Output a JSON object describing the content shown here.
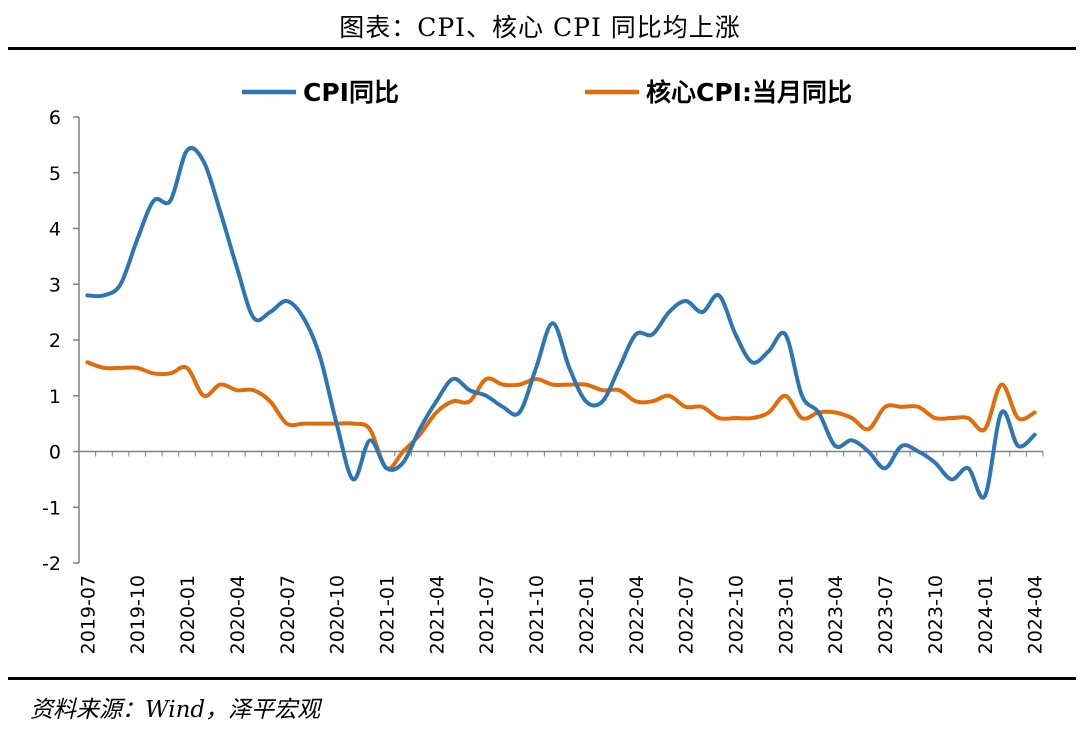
{
  "title": "图表：CPI、核心 CPI 同比均上涨",
  "source": "资料来源：Wind，泽平宏观",
  "colors": {
    "series_0": "#2E75B6",
    "series_1": "#E36C09",
    "axis": "#808080"
  },
  "chart_data": {
    "type": "line",
    "ylim": [
      -2,
      6
    ],
    "yticks": [
      -2,
      -1,
      0,
      1,
      2,
      3,
      4,
      5,
      6
    ],
    "grid": false,
    "legend_placement": "top",
    "x": [
      "2019-07",
      "2019-08",
      "2019-09",
      "2019-10",
      "2019-11",
      "2019-12",
      "2020-01",
      "2020-02",
      "2020-03",
      "2020-04",
      "2020-05",
      "2020-06",
      "2020-07",
      "2020-08",
      "2020-09",
      "2020-10",
      "2020-11",
      "2020-12",
      "2021-01",
      "2021-02",
      "2021-03",
      "2021-04",
      "2021-05",
      "2021-06",
      "2021-07",
      "2021-08",
      "2021-09",
      "2021-10",
      "2021-11",
      "2021-12",
      "2022-01",
      "2022-02",
      "2022-03",
      "2022-04",
      "2022-05",
      "2022-06",
      "2022-07",
      "2022-08",
      "2022-09",
      "2022-10",
      "2022-11",
      "2022-12",
      "2023-01",
      "2023-02",
      "2023-03",
      "2023-04",
      "2023-05",
      "2023-06",
      "2023-07",
      "2023-08",
      "2023-09",
      "2023-10",
      "2023-11",
      "2023-12",
      "2024-01",
      "2024-02",
      "2024-03",
      "2024-04"
    ],
    "xtick_labels": [
      "2019-07",
      "2019-10",
      "2020-01",
      "2020-04",
      "2020-07",
      "2020-10",
      "2021-01",
      "2021-04",
      "2021-07",
      "2021-10",
      "2022-01",
      "2022-04",
      "2022-07",
      "2022-10",
      "2023-01",
      "2023-04",
      "2023-07",
      "2023-10",
      "2024-01",
      "2024-04"
    ],
    "series": [
      {
        "name": "CPI同比",
        "values": [
          2.8,
          2.8,
          3.0,
          3.8,
          4.5,
          4.5,
          5.4,
          5.2,
          4.3,
          3.3,
          2.4,
          2.5,
          2.7,
          2.4,
          1.7,
          0.5,
          -0.5,
          0.2,
          -0.3,
          -0.2,
          0.4,
          0.9,
          1.3,
          1.1,
          1.0,
          0.8,
          0.7,
          1.5,
          2.3,
          1.5,
          0.9,
          0.9,
          1.5,
          2.1,
          2.1,
          2.5,
          2.7,
          2.5,
          2.8,
          2.1,
          1.6,
          1.8,
          2.1,
          1.0,
          0.7,
          0.1,
          0.2,
          0.0,
          -0.3,
          0.1,
          0.0,
          -0.2,
          -0.5,
          -0.3,
          -0.8,
          0.7,
          0.1,
          0.3
        ]
      },
      {
        "name": "核心CPI:当月同比",
        "values": [
          1.6,
          1.5,
          1.5,
          1.5,
          1.4,
          1.4,
          1.5,
          1.0,
          1.2,
          1.1,
          1.1,
          0.9,
          0.5,
          0.5,
          0.5,
          0.5,
          0.5,
          0.4,
          -0.3,
          0.0,
          0.3,
          0.7,
          0.9,
          0.9,
          1.3,
          1.2,
          1.2,
          1.3,
          1.2,
          1.2,
          1.2,
          1.1,
          1.1,
          0.9,
          0.9,
          1.0,
          0.8,
          0.8,
          0.6,
          0.6,
          0.6,
          0.7,
          1.0,
          0.6,
          0.7,
          0.7,
          0.6,
          0.4,
          0.8,
          0.8,
          0.8,
          0.6,
          0.6,
          0.6,
          0.4,
          1.2,
          0.6,
          0.7
        ]
      }
    ]
  }
}
